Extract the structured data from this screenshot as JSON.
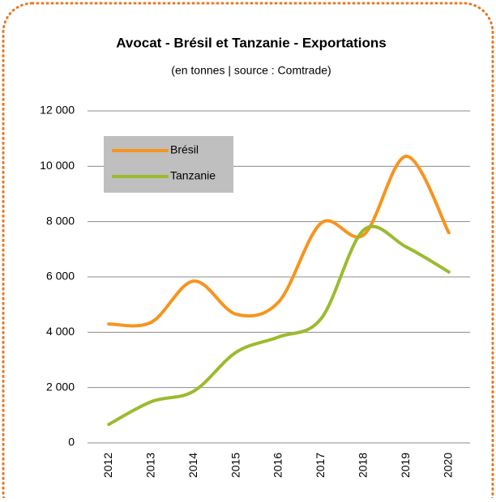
{
  "chart_data": {
    "type": "line",
    "title": "Avocat - Brésil et Tanzanie - Exportations",
    "subtitle": "(en tonnes | source : Comtrade)",
    "categories": [
      "2012",
      "2013",
      "2014",
      "2015",
      "2016",
      "2017",
      "2018",
      "2019",
      "2020"
    ],
    "series": [
      {
        "name": "Brésil",
        "color": "#f7941d",
        "values": [
          4300,
          4360,
          5850,
          4650,
          5100,
          7950,
          7520,
          10360,
          7600
        ]
      },
      {
        "name": "Tanzanie",
        "color": "#9bbb2f",
        "values": [
          670,
          1490,
          1870,
          3280,
          3830,
          4500,
          7700,
          7080,
          6180
        ]
      }
    ],
    "ylim": [
      0,
      12000
    ],
    "yticks": [
      0,
      {
        "value": 2000,
        "label": "2 000"
      },
      {
        "value": 4000,
        "label": "4 000"
      },
      {
        "value": 6000,
        "label": "6 000"
      },
      {
        "value": 8000,
        "label": "8 000"
      },
      {
        "value": 10000,
        "label": "10 000"
      },
      {
        "value": 12000,
        "label": "12 000"
      }
    ],
    "grid": true,
    "smooth": true,
    "legend": "upper left"
  }
}
